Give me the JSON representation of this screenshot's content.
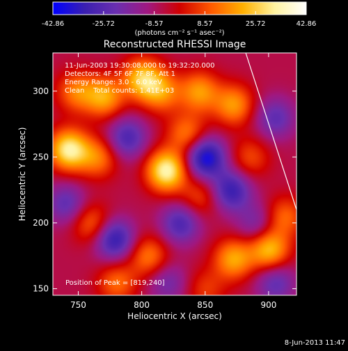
{
  "colorbar": {
    "ticks": [
      "-42.86",
      "-25.72",
      "-8.57",
      "8.57",
      "25.72",
      "42.86"
    ],
    "units": "(photons cm⁻² s⁻¹ asec⁻²)",
    "colors": [
      "#0000ff",
      "#3a1fb0",
      "#6a2fb0",
      "#a01880",
      "#d00000",
      "#ff5a00",
      "#ffb000",
      "#fff3a0",
      "#ffffff"
    ]
  },
  "chart_data": {
    "type": "heatmap",
    "title": "Reconstructed RHESSI Image",
    "xlabel": "Heliocentric X (arcsec)",
    "ylabel": "Heliocentric Y (arcsec)",
    "xlim": [
      730,
      922
    ],
    "ylim": [
      145,
      329
    ],
    "xticks": [
      750,
      800,
      850,
      900
    ],
    "yticks": [
      150,
      200,
      250,
      300
    ],
    "clim": [
      -42.86,
      42.86
    ],
    "info_lines": [
      "11-Jun-2003 19:30:08.000 to 19:32:20.000",
      "Detectors: 4F 5F 6F 7F 8F, Att 1",
      "Energy Range: 3.0 - 6.0 keV",
      "Clean    Total counts: 1.41E+03"
    ],
    "peak_label": "Position of Peak = [819,240]",
    "blobs": [
      {
        "x": 742,
        "y": 256,
        "amp": 38
      },
      {
        "x": 748,
        "y": 300,
        "amp": 20
      },
      {
        "x": 765,
        "y": 250,
        "amp": 20
      },
      {
        "x": 770,
        "y": 296,
        "amp": 26
      },
      {
        "x": 800,
        "y": 310,
        "amp": 30
      },
      {
        "x": 815,
        "y": 300,
        "amp": 22
      },
      {
        "x": 819,
        "y": 240,
        "amp": 40
      },
      {
        "x": 835,
        "y": 268,
        "amp": 20
      },
      {
        "x": 845,
        "y": 300,
        "amp": 24
      },
      {
        "x": 872,
        "y": 290,
        "amp": 24
      },
      {
        "x": 885,
        "y": 250,
        "amp": 14
      },
      {
        "x": 900,
        "y": 180,
        "amp": 30
      },
      {
        "x": 872,
        "y": 173,
        "amp": 26
      },
      {
        "x": 912,
        "y": 205,
        "amp": 18
      },
      {
        "x": 760,
        "y": 200,
        "amp": 18
      },
      {
        "x": 805,
        "y": 175,
        "amp": 20
      },
      {
        "x": 845,
        "y": 220,
        "amp": 14
      },
      {
        "x": 780,
        "y": 155,
        "amp": 18
      },
      {
        "x": 850,
        "y": 150,
        "amp": 12
      },
      {
        "x": 850,
        "y": 250,
        "amp": -34
      },
      {
        "x": 788,
        "y": 265,
        "amp": -22
      },
      {
        "x": 778,
        "y": 188,
        "amp": -28
      },
      {
        "x": 830,
        "y": 200,
        "amp": -22
      },
      {
        "x": 870,
        "y": 225,
        "amp": -26
      },
      {
        "x": 890,
        "y": 200,
        "amp": -14
      },
      {
        "x": 905,
        "y": 280,
        "amp": -18
      },
      {
        "x": 740,
        "y": 215,
        "amp": -18
      },
      {
        "x": 820,
        "y": 155,
        "amp": -14
      },
      {
        "x": 905,
        "y": 155,
        "amp": -18
      }
    ],
    "limb": [
      [
        882,
        329
      ],
      [
        922,
        210
      ]
    ]
  },
  "footer": {
    "timestamp": "8-Jun-2013 11:47"
  }
}
